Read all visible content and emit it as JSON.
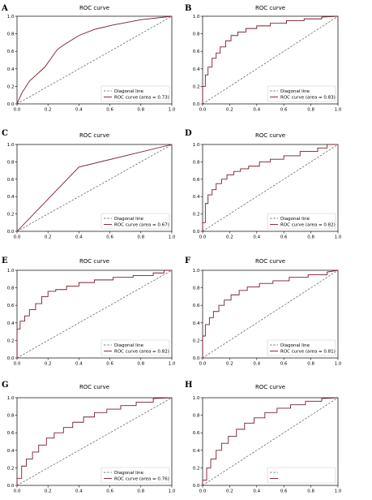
{
  "figure": {
    "colors": {
      "roc": "#7b1c2e",
      "diagonal": "#555555",
      "axis": "#000000"
    }
  },
  "chart_data": [
    {
      "panel": "A",
      "type": "line",
      "title": "ROC curve",
      "xlim": [
        0,
        1
      ],
      "ylim": [
        0,
        1
      ],
      "xticks": [
        "0.0",
        "0.2",
        "0.4",
        "0.6",
        "0.8",
        "1.0"
      ],
      "yticks": [
        "0.0",
        "0.2",
        "0.4",
        "0.6",
        "0.8",
        "1.0"
      ],
      "legend": {
        "placement": "bottom-right",
        "entries": [
          "Diagonal line",
          "ROC curve (area = 0.73)"
        ]
      },
      "series": [
        {
          "name": "Diagonal line",
          "style": "dashed",
          "x": [
            0,
            1
          ],
          "y": [
            0,
            1
          ]
        },
        {
          "name": "ROC curve (area = 0.73)",
          "style": "solid",
          "x": [
            0,
            0.03,
            0.08,
            0.18,
            0.26,
            0.3,
            0.4,
            0.5,
            0.62,
            0.8,
            1.0
          ],
          "y": [
            0,
            0.12,
            0.26,
            0.42,
            0.62,
            0.67,
            0.78,
            0.85,
            0.9,
            0.96,
            1.0
          ]
        }
      ]
    },
    {
      "panel": "B",
      "type": "line",
      "title": "ROC curve",
      "xlim": [
        0,
        1
      ],
      "ylim": [
        0,
        1
      ],
      "xticks": [
        "0.0",
        "0.2",
        "0.4",
        "0.6",
        "0.8",
        "1.0"
      ],
      "yticks": [
        "0.0",
        "0.2",
        "0.4",
        "0.6",
        "0.8",
        "1.0"
      ],
      "legend": {
        "placement": "bottom-right",
        "entries": [
          "Diagonal line",
          "ROC curve (area = 0.83)"
        ]
      },
      "series": [
        {
          "name": "Diagonal line",
          "style": "dashed",
          "x": [
            0,
            1
          ],
          "y": [
            0,
            1
          ]
        },
        {
          "name": "ROC curve (area = 0.83)",
          "style": "solid",
          "x": [
            0,
            0.0,
            0.02,
            0.02,
            0.04,
            0.04,
            0.07,
            0.07,
            0.1,
            0.1,
            0.13,
            0.13,
            0.17,
            0.17,
            0.21,
            0.21,
            0.26,
            0.26,
            0.32,
            0.32,
            0.4,
            0.4,
            0.5,
            0.5,
            0.62,
            0.62,
            0.75,
            0.75,
            0.88,
            0.88,
            1.0
          ],
          "y": [
            0,
            0.2,
            0.2,
            0.33,
            0.33,
            0.42,
            0.42,
            0.52,
            0.52,
            0.58,
            0.58,
            0.65,
            0.65,
            0.72,
            0.72,
            0.78,
            0.78,
            0.82,
            0.82,
            0.86,
            0.86,
            0.89,
            0.89,
            0.92,
            0.92,
            0.95,
            0.95,
            0.97,
            0.97,
            0.99,
            1.0
          ]
        }
      ]
    },
    {
      "panel": "C",
      "type": "line",
      "title": "ROC curve",
      "xlim": [
        0,
        1
      ],
      "ylim": [
        0,
        1
      ],
      "xticks": [
        "0.0",
        "0.2",
        "0.4",
        "0.6",
        "0.8",
        "1.0"
      ],
      "yticks": [
        "0.0",
        "0.2",
        "0.4",
        "0.6",
        "0.8",
        "1.0"
      ],
      "legend": {
        "placement": "bottom-right",
        "entries": [
          "Diagonal line",
          "ROC curve (area = 0.67)"
        ]
      },
      "series": [
        {
          "name": "Diagonal line",
          "style": "dashed",
          "x": [
            0,
            1
          ],
          "y": [
            0,
            1
          ]
        },
        {
          "name": "ROC curve (area = 0.67)",
          "style": "solid",
          "x": [
            0,
            0.4,
            1.0
          ],
          "y": [
            0,
            0.74,
            1.0
          ]
        }
      ]
    },
    {
      "panel": "D",
      "type": "line",
      "title": "ROC curve",
      "xlim": [
        0,
        1
      ],
      "ylim": [
        0,
        1
      ],
      "xticks": [
        "0.0",
        "0.2",
        "0.4",
        "0.6",
        "0.8",
        "1.0"
      ],
      "yticks": [
        "0.0",
        "0.2",
        "0.4",
        "0.6",
        "0.8",
        "1.0"
      ],
      "legend": {
        "placement": "bottom-right",
        "entries": [
          "Diagonal line",
          "ROC curve (area = 0.82)"
        ]
      },
      "series": [
        {
          "name": "Diagonal line",
          "style": "dashed",
          "x": [
            0,
            1
          ],
          "y": [
            0,
            1
          ]
        },
        {
          "name": "ROC curve (area = 0.82)",
          "style": "solid",
          "x": [
            0,
            0.0,
            0.02,
            0.02,
            0.04,
            0.04,
            0.07,
            0.07,
            0.1,
            0.1,
            0.14,
            0.14,
            0.18,
            0.18,
            0.23,
            0.23,
            0.28,
            0.28,
            0.34,
            0.34,
            0.42,
            0.42,
            0.5,
            0.5,
            0.6,
            0.6,
            0.72,
            0.72,
            0.85,
            0.85,
            0.92,
            0.92,
            1.0
          ],
          "y": [
            0,
            0.1,
            0.1,
            0.32,
            0.32,
            0.42,
            0.42,
            0.48,
            0.48,
            0.55,
            0.55,
            0.6,
            0.6,
            0.65,
            0.65,
            0.69,
            0.69,
            0.72,
            0.72,
            0.75,
            0.75,
            0.8,
            0.8,
            0.83,
            0.83,
            0.87,
            0.87,
            0.92,
            0.92,
            0.96,
            0.96,
            1.0,
            1.0
          ]
        }
      ]
    },
    {
      "panel": "E",
      "type": "line",
      "title": "ROC curve",
      "xlim": [
        0,
        1
      ],
      "ylim": [
        0,
        1
      ],
      "xticks": [
        "0.0",
        "0.2",
        "0.4",
        "0.6",
        "0.8",
        "1.0"
      ],
      "yticks": [
        "0.0",
        "0.2",
        "0.4",
        "0.6",
        "0.8",
        "1.0"
      ],
      "legend": {
        "placement": "bottom-right",
        "entries": [
          "Diagonal line",
          "ROC curve (area = 0.82)"
        ]
      },
      "series": [
        {
          "name": "Diagonal line",
          "style": "dashed",
          "x": [
            0,
            1
          ],
          "y": [
            0,
            1
          ]
        },
        {
          "name": "ROC curve (area = 0.82)",
          "style": "solid",
          "x": [
            0,
            0.0,
            0.02,
            0.02,
            0.05,
            0.05,
            0.08,
            0.08,
            0.12,
            0.12,
            0.16,
            0.16,
            0.2,
            0.2,
            0.25,
            0.25,
            0.32,
            0.32,
            0.4,
            0.4,
            0.5,
            0.5,
            0.62,
            0.62,
            0.75,
            0.75,
            0.88,
            0.88,
            0.95,
            0.95,
            1.0
          ],
          "y": [
            0,
            0.33,
            0.33,
            0.42,
            0.42,
            0.48,
            0.48,
            0.55,
            0.55,
            0.62,
            0.62,
            0.7,
            0.7,
            0.76,
            0.76,
            0.78,
            0.78,
            0.82,
            0.82,
            0.86,
            0.86,
            0.89,
            0.89,
            0.92,
            0.92,
            0.94,
            0.94,
            0.97,
            0.97,
            1.0,
            1.0
          ]
        }
      ]
    },
    {
      "panel": "F",
      "type": "line",
      "title": "ROC curve",
      "xlim": [
        0,
        1
      ],
      "ylim": [
        0,
        1
      ],
      "xticks": [
        "0.0",
        "0.2",
        "0.4",
        "0.6",
        "0.8",
        "1.0"
      ],
      "yticks": [
        "0.0",
        "0.2",
        "0.4",
        "0.6",
        "0.8",
        "1.0"
      ],
      "legend": {
        "placement": "bottom-right",
        "entries": [
          "Diagonal line",
          "ROC curve (area = 0.81)"
        ]
      },
      "series": [
        {
          "name": "Diagonal line",
          "style": "dashed",
          "x": [
            0,
            1
          ],
          "y": [
            0,
            1
          ]
        },
        {
          "name": "ROC curve (area = 0.81)",
          "style": "solid",
          "x": [
            0,
            0.0,
            0.02,
            0.02,
            0.05,
            0.05,
            0.08,
            0.08,
            0.12,
            0.12,
            0.16,
            0.16,
            0.21,
            0.21,
            0.27,
            0.27,
            0.33,
            0.33,
            0.42,
            0.42,
            0.52,
            0.52,
            0.64,
            0.64,
            0.78,
            0.78,
            0.92,
            0.92,
            1.0
          ],
          "y": [
            0,
            0.25,
            0.25,
            0.38,
            0.38,
            0.46,
            0.46,
            0.53,
            0.53,
            0.6,
            0.6,
            0.66,
            0.66,
            0.72,
            0.72,
            0.77,
            0.77,
            0.81,
            0.81,
            0.85,
            0.85,
            0.88,
            0.88,
            0.92,
            0.92,
            0.95,
            0.95,
            0.98,
            1.0
          ]
        }
      ]
    },
    {
      "panel": "G",
      "type": "line",
      "title": "ROC curve",
      "xlim": [
        0,
        1
      ],
      "ylim": [
        0,
        1
      ],
      "xticks": [
        "0.0",
        "0.2",
        "0.4",
        "0.6",
        "0.8",
        "1.0"
      ],
      "yticks": [
        "0.0",
        "0.2",
        "0.4",
        "0.6",
        "0.8",
        "1.0"
      ],
      "legend": {
        "placement": "bottom-right",
        "entries": [
          "Diagonal line",
          "ROC curve (area = 0.76)"
        ]
      },
      "series": [
        {
          "name": "Diagonal line",
          "style": "dashed",
          "x": [
            0,
            1
          ],
          "y": [
            0,
            1
          ]
        },
        {
          "name": "ROC curve (area = 0.76)",
          "style": "solid",
          "x": [
            0,
            0.0,
            0.03,
            0.03,
            0.06,
            0.06,
            0.1,
            0.1,
            0.14,
            0.14,
            0.19,
            0.19,
            0.24,
            0.24,
            0.3,
            0.3,
            0.36,
            0.36,
            0.43,
            0.43,
            0.5,
            0.5,
            0.58,
            0.58,
            0.67,
            0.67,
            0.77,
            0.77,
            0.88,
            0.88,
            1.0
          ],
          "y": [
            0,
            0.08,
            0.08,
            0.22,
            0.22,
            0.3,
            0.3,
            0.38,
            0.38,
            0.46,
            0.46,
            0.54,
            0.54,
            0.6,
            0.6,
            0.66,
            0.66,
            0.72,
            0.72,
            0.78,
            0.78,
            0.83,
            0.83,
            0.87,
            0.87,
            0.91,
            0.91,
            0.95,
            0.95,
            0.99,
            1.0
          ]
        }
      ]
    },
    {
      "panel": "H",
      "type": "line",
      "title": "ROC curve",
      "xlim": [
        0,
        1
      ],
      "ylim": [
        0,
        1
      ],
      "xticks": [
        "0.0",
        "0.2",
        "0.4",
        "0.6",
        "0.8",
        "1.0"
      ],
      "yticks": [
        "0.0",
        "0.2",
        "0.4",
        "0.6",
        "0.8",
        "1.0"
      ],
      "legend": {
        "placement": "bottom-right",
        "entries": [
          "",
          ""
        ]
      },
      "series": [
        {
          "name": "",
          "style": "dashed",
          "x": [
            0,
            1
          ],
          "y": [
            0,
            1
          ]
        },
        {
          "name": "",
          "style": "solid",
          "x": [
            0,
            0.0,
            0.03,
            0.03,
            0.06,
            0.06,
            0.1,
            0.1,
            0.14,
            0.14,
            0.19,
            0.19,
            0.25,
            0.25,
            0.31,
            0.31,
            0.38,
            0.38,
            0.46,
            0.46,
            0.55,
            0.55,
            0.65,
            0.65,
            0.76,
            0.76,
            0.88,
            0.88,
            1.0
          ],
          "y": [
            0,
            0.06,
            0.06,
            0.2,
            0.2,
            0.3,
            0.3,
            0.4,
            0.4,
            0.48,
            0.48,
            0.56,
            0.56,
            0.64,
            0.64,
            0.71,
            0.71,
            0.77,
            0.77,
            0.83,
            0.83,
            0.88,
            0.88,
            0.92,
            0.92,
            0.96,
            0.96,
            0.99,
            1.0
          ]
        }
      ]
    }
  ]
}
